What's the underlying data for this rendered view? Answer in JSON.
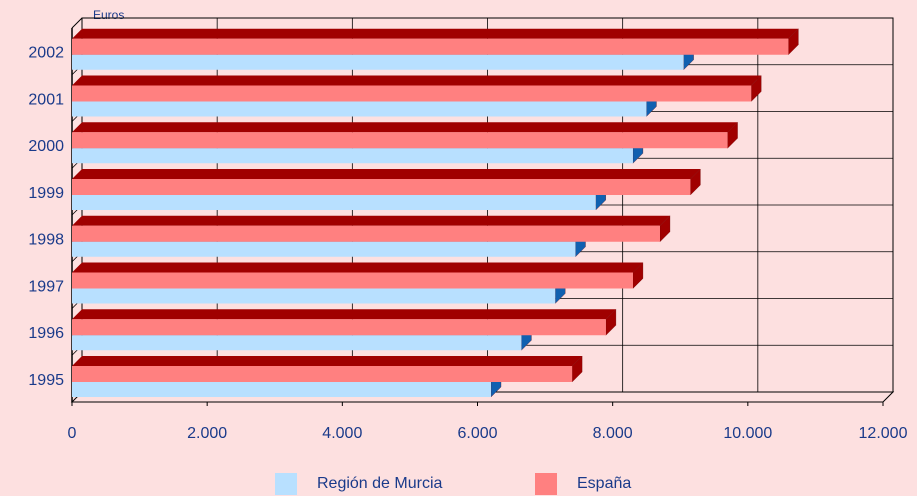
{
  "chart_data": {
    "type": "bar3d_horizontal",
    "unit_label": "Euros",
    "categories": [
      "1995",
      "1996",
      "1997",
      "1998",
      "1999",
      "2000",
      "2001",
      "2002"
    ],
    "series": [
      {
        "name": "Región de Murcia",
        "color": "#b8e0ff",
        "side_color": "#1060b0",
        "values": [
          6200,
          6650,
          7150,
          7450,
          7750,
          8300,
          8500,
          9050
        ]
      },
      {
        "name": "España",
        "color": "#ff8080",
        "side_color": "#a00000",
        "values": [
          7400,
          7900,
          8300,
          8700,
          9150,
          9700,
          10050,
          10600
        ]
      }
    ],
    "xlim": [
      0,
      12000
    ],
    "xticks": [
      0,
      {
        "value": 2000,
        "label": "2.000"
      },
      {
        "value": 4000,
        "label": "4.000"
      },
      {
        "value": 6000,
        "label": "6.000"
      },
      {
        "value": 8000,
        "label": "8.000"
      },
      {
        "value": 10000,
        "label": "10.000"
      },
      {
        "value": 12000,
        "label": "12.000"
      }
    ],
    "grid": true,
    "legend": "bottom"
  }
}
